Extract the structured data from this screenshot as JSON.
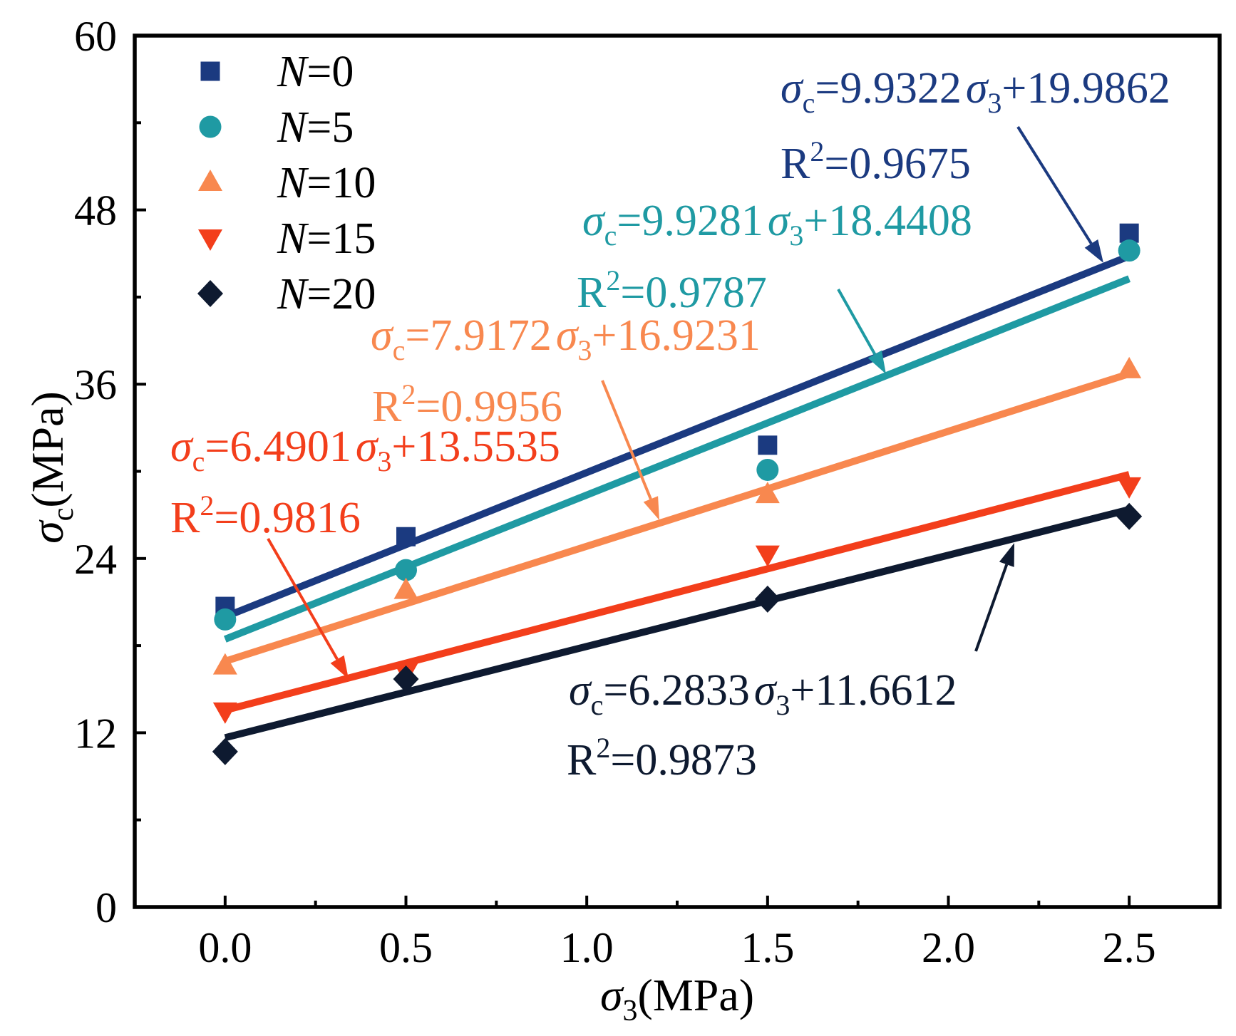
{
  "chart_data": {
    "type": "scatter",
    "x": [
      0,
      0.5,
      1.5,
      2.5
    ],
    "xlim": [
      -0.25,
      2.75
    ],
    "ylim": [
      0,
      60
    ],
    "x_ticks": [
      "0.0",
      "0.5",
      "1.0",
      "1.5",
      "2.0",
      "2.5"
    ],
    "y_ticks": [
      "0",
      "12",
      "24",
      "36",
      "48",
      "60"
    ],
    "xlabel": {
      "symbol": "σ",
      "subscript": "3",
      "unit": "(MPa)"
    },
    "ylabel": {
      "symbol": "σ",
      "subscript": "c",
      "unit": "(MPa)"
    },
    "grid": false,
    "legend_position": "top-left",
    "symbols": {
      "sigma": "σ",
      "sub_c": "c",
      "sub_3": "3",
      "equals": "=",
      "plus": "+",
      "R": "R",
      "sup_2": "2"
    },
    "series": [
      {
        "legend": {
          "var": "N",
          "eq": "=0"
        },
        "color": "#1b3a80",
        "values": [
          20.7,
          25.5,
          31.8,
          46.4
        ],
        "fit": {
          "slope": 9.9322,
          "intercept": 19.9862,
          "r2": 0.9675
        }
      },
      {
        "legend": {
          "var": "N",
          "eq": "=5"
        },
        "color": "#1f9aa3",
        "values": [
          19.8,
          23.2,
          30.1,
          45.2
        ],
        "fit": {
          "slope": 9.9281,
          "intercept": 18.4408,
          "r2": 0.9787
        }
      },
      {
        "legend": {
          "var": "N",
          "eq": "=10"
        },
        "color": "#f8884f",
        "values": [
          16.6,
          21.8,
          28.4,
          37.0
        ],
        "fit": {
          "slope": 7.9172,
          "intercept": 16.9231,
          "r2": 0.9956
        }
      },
      {
        "legend": {
          "var": "N",
          "eq": "=15"
        },
        "color": "#f33e1b",
        "values": [
          13.5,
          16.2,
          24.3,
          29.0
        ],
        "fit": {
          "slope": 6.4901,
          "intercept": 13.5535,
          "r2": 0.9816
        }
      },
      {
        "legend": {
          "var": "N",
          "eq": "=20"
        },
        "color": "#0e1a30",
        "values": [
          10.7,
          15.7,
          21.2,
          26.9
        ],
        "fit": {
          "slope": 6.2833,
          "intercept": 11.6612,
          "r2": 0.9873
        }
      }
    ]
  }
}
